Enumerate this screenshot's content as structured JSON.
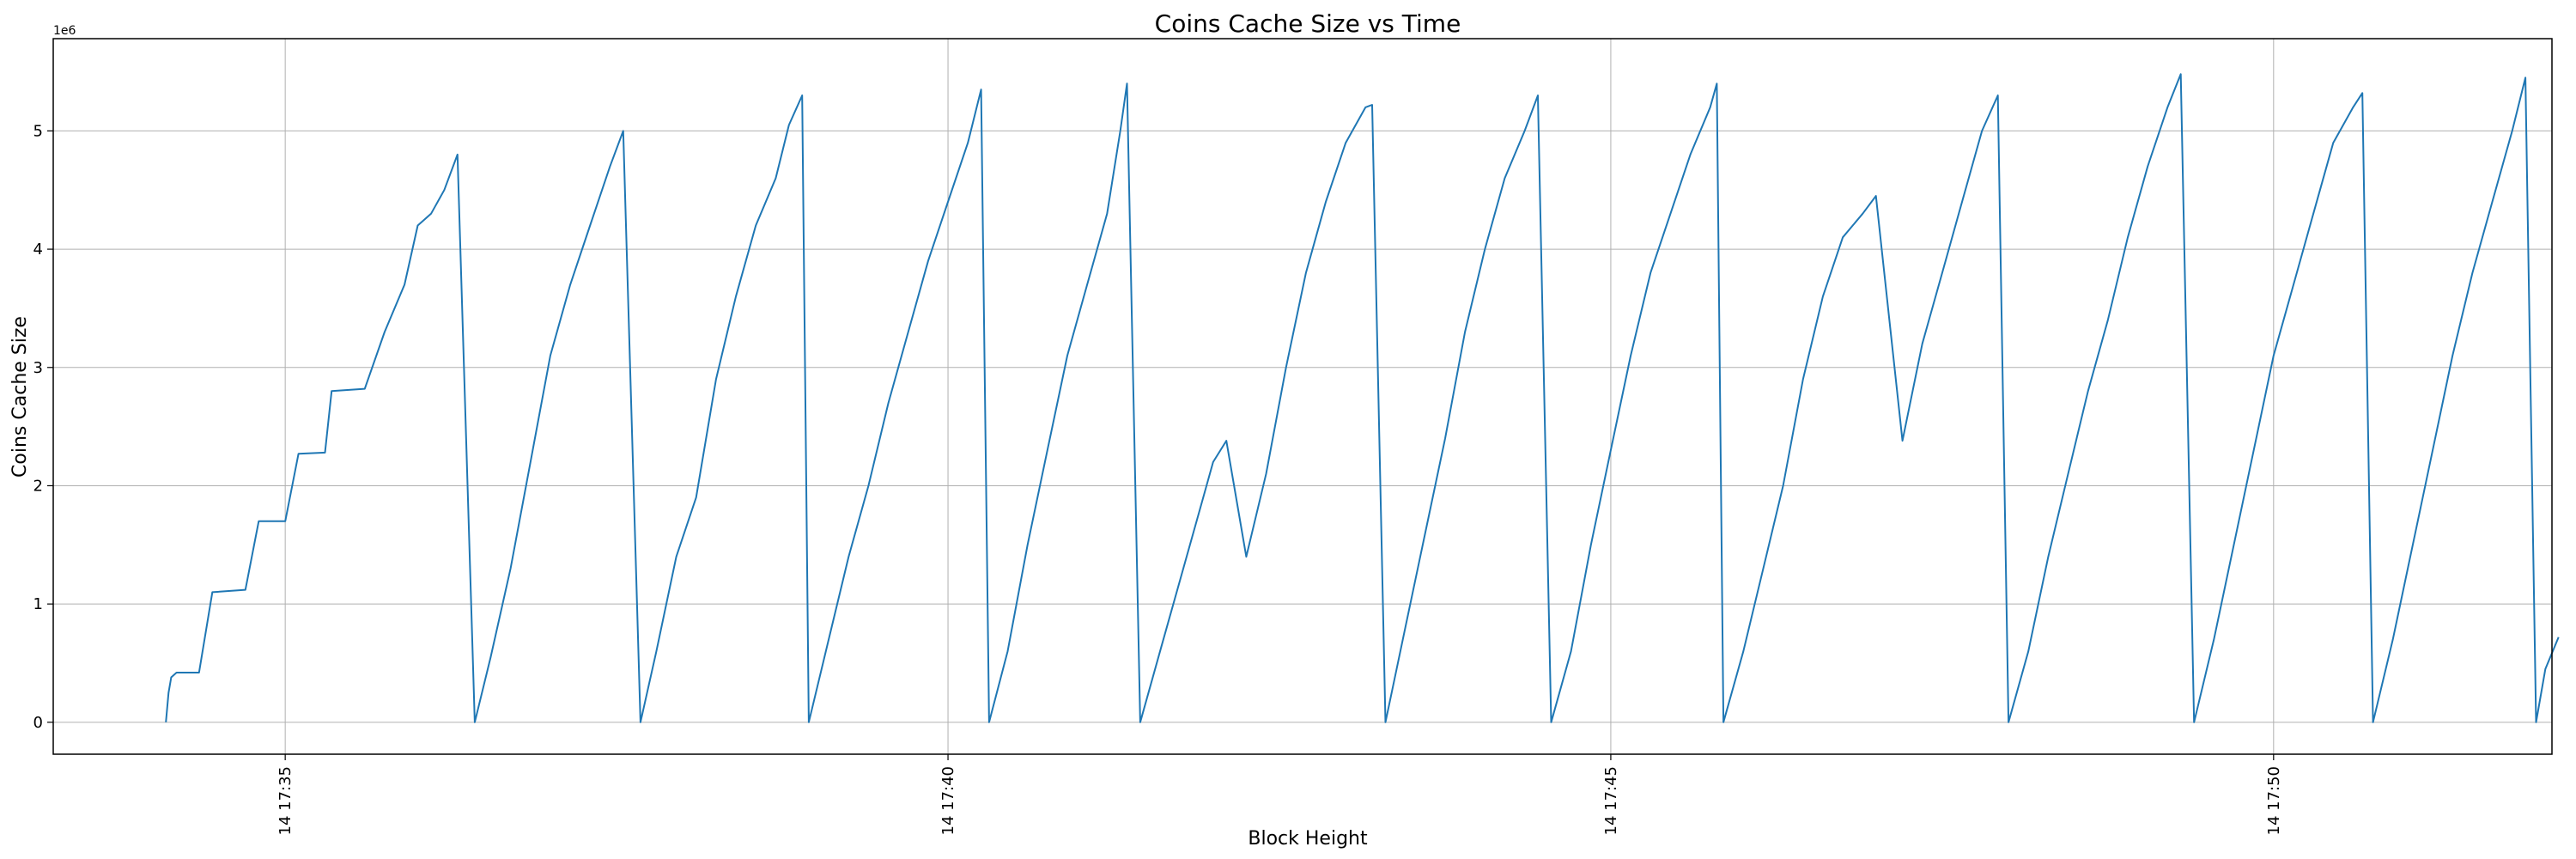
{
  "chart_data": {
    "type": "line",
    "title": "Coins Cache Size vs Time",
    "xlabel": "Block Height",
    "ylabel": "Coins Cache Size",
    "y_offset_label": "1e6",
    "xlim": [
      33.25,
      52.1
    ],
    "ylim": [
      -0.27,
      5.78
    ],
    "x_ticks": [
      {
        "value": 35,
        "label": "14 17:35"
      },
      {
        "value": 40,
        "label": "14 17:40"
      },
      {
        "value": 45,
        "label": "14 17:45"
      },
      {
        "value": 50,
        "label": "14 17:50"
      }
    ],
    "y_ticks": [
      {
        "value": 0,
        "label": "0"
      },
      {
        "value": 1,
        "label": "1"
      },
      {
        "value": 2,
        "label": "2"
      },
      {
        "value": 3,
        "label": "3"
      },
      {
        "value": 4,
        "label": "4"
      },
      {
        "value": 5,
        "label": "5"
      }
    ],
    "grid": true,
    "line_color": "#1f77b4",
    "series": [
      {
        "name": "",
        "values": [
          [
            34.1,
            0.0
          ],
          [
            34.12,
            0.25
          ],
          [
            34.14,
            0.38
          ],
          [
            34.18,
            0.42
          ],
          [
            34.35,
            0.42
          ],
          [
            34.45,
            1.1
          ],
          [
            34.7,
            1.12
          ],
          [
            34.8,
            1.7
          ],
          [
            35.0,
            1.7
          ],
          [
            35.1,
            2.27
          ],
          [
            35.3,
            2.28
          ],
          [
            35.35,
            2.8
          ],
          [
            35.6,
            2.82
          ],
          [
            35.75,
            3.3
          ],
          [
            35.9,
            3.7
          ],
          [
            36.0,
            4.2
          ],
          [
            36.1,
            4.3
          ],
          [
            36.2,
            4.5
          ],
          [
            36.3,
            4.8
          ],
          [
            36.43,
            0.0
          ],
          [
            36.55,
            0.55
          ],
          [
            36.7,
            1.3
          ],
          [
            36.85,
            2.2
          ],
          [
            37.0,
            3.1
          ],
          [
            37.15,
            3.7
          ],
          [
            37.3,
            4.2
          ],
          [
            37.45,
            4.7
          ],
          [
            37.55,
            5.0
          ],
          [
            37.68,
            0.0
          ],
          [
            37.8,
            0.6
          ],
          [
            37.95,
            1.4
          ],
          [
            38.1,
            1.9
          ],
          [
            38.25,
            2.9
          ],
          [
            38.4,
            3.6
          ],
          [
            38.55,
            4.2
          ],
          [
            38.7,
            4.6
          ],
          [
            38.8,
            5.05
          ],
          [
            38.9,
            5.3
          ],
          [
            38.95,
            0.0
          ],
          [
            39.1,
            0.7
          ],
          [
            39.25,
            1.4
          ],
          [
            39.4,
            2.0
          ],
          [
            39.55,
            2.7
          ],
          [
            39.7,
            3.3
          ],
          [
            39.85,
            3.9
          ],
          [
            40.0,
            4.4
          ],
          [
            40.15,
            4.9
          ],
          [
            40.25,
            5.35
          ],
          [
            40.31,
            0.0
          ],
          [
            40.45,
            0.6
          ],
          [
            40.6,
            1.5
          ],
          [
            40.75,
            2.3
          ],
          [
            40.9,
            3.1
          ],
          [
            41.05,
            3.7
          ],
          [
            41.2,
            4.3
          ],
          [
            41.3,
            5.0
          ],
          [
            41.35,
            5.4
          ],
          [
            41.45,
            0.0
          ],
          [
            41.6,
            0.6
          ],
          [
            41.75,
            1.2
          ],
          [
            41.9,
            1.8
          ],
          [
            42.0,
            2.2
          ],
          [
            42.1,
            2.38
          ],
          [
            42.25,
            1.4
          ],
          [
            42.4,
            2.1
          ],
          [
            42.55,
            3.0
          ],
          [
            42.7,
            3.8
          ],
          [
            42.85,
            4.4
          ],
          [
            43.0,
            4.9
          ],
          [
            43.15,
            5.2
          ],
          [
            43.2,
            5.22
          ],
          [
            43.3,
            0.0
          ],
          [
            43.45,
            0.8
          ],
          [
            43.6,
            1.6
          ],
          [
            43.75,
            2.4
          ],
          [
            43.9,
            3.3
          ],
          [
            44.05,
            4.0
          ],
          [
            44.2,
            4.6
          ],
          [
            44.35,
            5.0
          ],
          [
            44.45,
            5.3
          ],
          [
            44.55,
            0.0
          ],
          [
            44.7,
            0.6
          ],
          [
            44.85,
            1.5
          ],
          [
            45.0,
            2.3
          ],
          [
            45.15,
            3.1
          ],
          [
            45.3,
            3.8
          ],
          [
            45.45,
            4.3
          ],
          [
            45.6,
            4.8
          ],
          [
            45.75,
            5.2
          ],
          [
            45.8,
            5.4
          ],
          [
            45.85,
            0.0
          ],
          [
            46.0,
            0.6
          ],
          [
            46.15,
            1.3
          ],
          [
            46.3,
            2.0
          ],
          [
            46.45,
            2.9
          ],
          [
            46.6,
            3.6
          ],
          [
            46.75,
            4.1
          ],
          [
            46.9,
            4.3
          ],
          [
            47.0,
            4.45
          ],
          [
            47.2,
            2.38
          ],
          [
            47.35,
            3.2
          ],
          [
            47.5,
            3.8
          ],
          [
            47.65,
            4.4
          ],
          [
            47.8,
            5.0
          ],
          [
            47.92,
            5.3
          ],
          [
            48.0,
            0.0
          ],
          [
            48.15,
            0.6
          ],
          [
            48.3,
            1.4
          ],
          [
            48.45,
            2.1
          ],
          [
            48.6,
            2.8
          ],
          [
            48.75,
            3.4
          ],
          [
            48.9,
            4.1
          ],
          [
            49.05,
            4.7
          ],
          [
            49.2,
            5.2
          ],
          [
            49.3,
            5.48
          ],
          [
            49.4,
            0.0
          ],
          [
            49.55,
            0.7
          ],
          [
            49.7,
            1.5
          ],
          [
            49.85,
            2.3
          ],
          [
            50.0,
            3.1
          ],
          [
            50.15,
            3.7
          ],
          [
            50.3,
            4.3
          ],
          [
            50.45,
            4.9
          ],
          [
            50.6,
            5.2
          ],
          [
            50.67,
            5.32
          ],
          [
            50.75,
            0.0
          ],
          [
            50.9,
            0.7
          ],
          [
            51.05,
            1.5
          ],
          [
            51.2,
            2.3
          ],
          [
            51.35,
            3.1
          ],
          [
            51.5,
            3.8
          ],
          [
            51.65,
            4.4
          ],
          [
            51.8,
            5.0
          ],
          [
            51.9,
            5.45
          ],
          [
            51.98,
            0.0
          ],
          [
            52.05,
            0.45
          ],
          [
            52.15,
            0.72
          ]
        ]
      }
    ]
  }
}
